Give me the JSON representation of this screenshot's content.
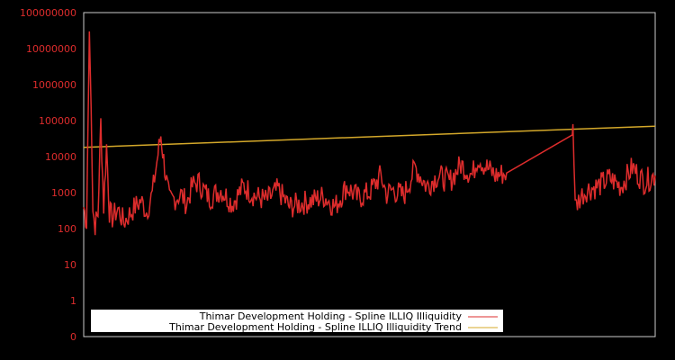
{
  "chart_data": {
    "type": "line",
    "title": "",
    "xlabel": "",
    "ylabel": "",
    "y_scale": "log",
    "ylim": [
      0,
      100000000
    ],
    "y_tick_labels": [
      "0",
      "1",
      "10",
      "100",
      "1000",
      "10000",
      "100000",
      "1000000",
      "10000000",
      "100000000"
    ],
    "x_tick_labels": [],
    "grid": false,
    "legend_position": "lower-left inside",
    "colors": {
      "background": "#000000",
      "axis": "#cccccc",
      "tick_label": "#dd2c2c",
      "series": "#dd2c2c",
      "trend": "#d4a82a"
    },
    "series": [
      {
        "name": "Thimar Development Holding - Spline ILLIQ Illiquidity",
        "color": "#dd2c2c",
        "x_frac": [
          0.0,
          0.005,
          0.01,
          0.013,
          0.016,
          0.02,
          0.025,
          0.03,
          0.035,
          0.04,
          0.045,
          0.05,
          0.06,
          0.07,
          0.08,
          0.09,
          0.1,
          0.11,
          0.12,
          0.13,
          0.135,
          0.14,
          0.145,
          0.15,
          0.16,
          0.17,
          0.18,
          0.19,
          0.2,
          0.22,
          0.24,
          0.26,
          0.28,
          0.3,
          0.32,
          0.34,
          0.36,
          0.38,
          0.4,
          0.42,
          0.44,
          0.46,
          0.48,
          0.5,
          0.52,
          0.53,
          0.54,
          0.56,
          0.58,
          0.6,
          0.62,
          0.64,
          0.66,
          0.68,
          0.69,
          0.7,
          0.72,
          0.74,
          0.855,
          0.856,
          0.86,
          0.87,
          0.88,
          0.9,
          0.92,
          0.94,
          0.96,
          0.98,
          1.0
        ],
        "values": [
          400,
          150,
          30000000,
          200000,
          300,
          130,
          250,
          90000,
          400,
          20000,
          300,
          200,
          350,
          150,
          250,
          400,
          600,
          300,
          900,
          12000,
          40000,
          8000,
          2000,
          600,
          700,
          900,
          500,
          1500,
          2000,
          700,
          1200,
          500,
          1500,
          800,
          600,
          1200,
          400,
          500,
          600,
          800,
          400,
          1500,
          700,
          1000,
          3000,
          900,
          1200,
          800,
          5000,
          1500,
          3000,
          2000,
          6000,
          3000,
          10000,
          6000,
          3000,
          3500,
          40000,
          80000,
          400,
          800,
          1200,
          1500,
          2500,
          1500,
          5000,
          2000,
          3000
        ]
      },
      {
        "name": "Thimar Development Holding - Spline ILLIQ Illiquidity Trend",
        "color": "#d4a82a",
        "x_frac": [
          0.0,
          1.0
        ],
        "values": [
          18000,
          70000
        ]
      }
    ]
  },
  "legend": {
    "items": [
      {
        "label": "Thimar Development Holding - Spline ILLIQ Illiquidity",
        "color": "#dd2c2c"
      },
      {
        "label": "Thimar Development Holding - Spline ILLIQ Illiquidity Trend",
        "color": "#d4a82a"
      }
    ]
  }
}
